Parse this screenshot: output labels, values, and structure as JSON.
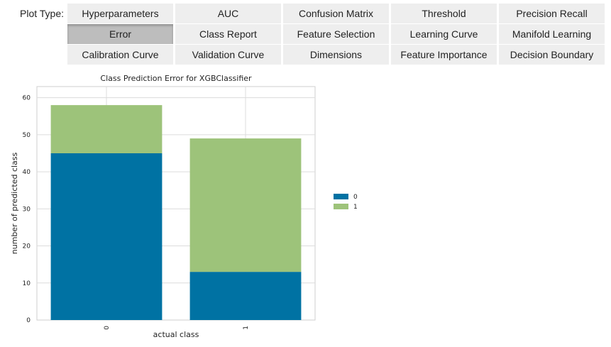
{
  "plot_type_label": "Plot Type:",
  "plot_types": [
    "Hyperparameters",
    "AUC",
    "Confusion Matrix",
    "Threshold",
    "Precision Recall",
    "Error",
    "Class Report",
    "Feature Selection",
    "Learning Curve",
    "Manifold Learning",
    "Calibration Curve",
    "Validation Curve",
    "Dimensions",
    "Feature Importance",
    "Decision Boundary"
  ],
  "selected_plot_type": "Error",
  "colors": {
    "class_0": "#0072a3",
    "class_1": "#9dc37a",
    "button_bg": "#eeeeee",
    "button_selected_bg": "#bdbdbd"
  },
  "chart_data": {
    "type": "bar",
    "stacked": true,
    "title": "Class Prediction Error for XGBClassifier",
    "xlabel": "actual class",
    "ylabel": "number of predicted class",
    "categories": [
      "0",
      "1"
    ],
    "series": [
      {
        "name": "0",
        "values": [
          45,
          13
        ],
        "color": "#0072a3"
      },
      {
        "name": "1",
        "values": [
          13,
          36
        ],
        "color": "#9dc37a"
      }
    ],
    "ylim": [
      0,
      63
    ],
    "yticks": [
      0,
      10,
      20,
      30,
      40,
      50,
      60
    ],
    "grid": true,
    "legend_position": "right"
  }
}
